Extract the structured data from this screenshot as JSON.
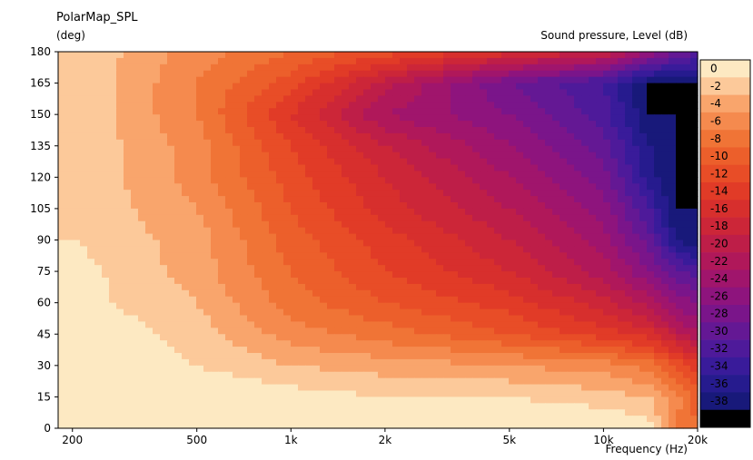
{
  "chart_data": {
    "type": "heatmap",
    "title": "PolarMap_SPL",
    "ylabel": "(deg)",
    "xlabel": "Frequency  (Hz)",
    "colorbar_label": "Sound pressure, Level  (dB)",
    "x_scale": "log",
    "xlim": [
      180,
      20000
    ],
    "ylim": [
      0,
      180
    ],
    "x_ticks": [
      {
        "value": 200,
        "label": "200"
      },
      {
        "value": 500,
        "label": "500"
      },
      {
        "value": 1000,
        "label": "1k"
      },
      {
        "value": 2000,
        "label": "2k"
      },
      {
        "value": 5000,
        "label": "5k"
      },
      {
        "value": 10000,
        "label": "10k"
      },
      {
        "value": 20000,
        "label": "20k"
      }
    ],
    "y_ticks": [
      0,
      15,
      30,
      45,
      60,
      75,
      90,
      105,
      120,
      135,
      150,
      165,
      180
    ],
    "colorbar": {
      "range": [
        -40,
        0
      ],
      "levels": [
        0,
        -2,
        -4,
        -6,
        -8,
        -10,
        -12,
        -14,
        -16,
        -18,
        -20,
        -22,
        -24,
        -26,
        -28,
        -30,
        -32,
        -34,
        -36,
        -38,
        -40
      ],
      "colors": [
        "#fde9c2",
        "#fcc99a",
        "#f9a56c",
        "#f58a4e",
        "#f07436",
        "#ec5f2b",
        "#e84d27",
        "#e13b27",
        "#d72f2d",
        "#cc2638",
        "#be1e48",
        "#b0185a",
        "#a0156c",
        "#8e147d",
        "#7a158a",
        "#641894",
        "#4e1a9a",
        "#391b9a",
        "#261b8e",
        "#18197a",
        "#000000"
      ]
    },
    "frequencies": [
      200,
      500,
      1000,
      2000,
      5000,
      10000,
      14000,
      17000,
      20000
    ],
    "angles": [
      0,
      15,
      30,
      45,
      60,
      75,
      90,
      105,
      120,
      135,
      150,
      165,
      180
    ],
    "values_db": [
      [
        0,
        0,
        0,
        0,
        0,
        0,
        -1,
        -8,
        -10
      ],
      [
        0,
        0,
        -1,
        -2,
        -2,
        -3,
        -4,
        -7,
        -11
      ],
      [
        0,
        -2,
        -4,
        -5,
        -6,
        -7,
        -9,
        -12,
        -15
      ],
      [
        0,
        -3,
        -7,
        -9,
        -12,
        -15,
        -17,
        -21,
        -24
      ],
      [
        -1,
        -4,
        -9,
        -12,
        -15,
        -19,
        -23,
        -27,
        -28
      ],
      [
        -1,
        -5,
        -10,
        -14,
        -18,
        -23,
        -28,
        -31,
        -33
      ],
      [
        -2,
        -5,
        -11,
        -15,
        -20,
        -25,
        -31,
        -38,
        -40
      ],
      [
        -2,
        -6,
        -12,
        -17,
        -22,
        -27,
        -34,
        -40,
        -40
      ],
      [
        -2,
        -7,
        -13,
        -18,
        -24,
        -29,
        -37,
        -40,
        -40
      ],
      [
        -2,
        -7,
        -14,
        -20,
        -26,
        -31,
        -38,
        -40,
        -40
      ],
      [
        -2,
        -8,
        -16,
        -24,
        -28,
        -33,
        -40,
        -40,
        -40
      ],
      [
        -2,
        -8,
        -13,
        -21,
        -30,
        -34,
        -40,
        -40,
        -40
      ],
      [
        -2,
        -7,
        -10,
        -13,
        -17,
        -20,
        -26,
        -30,
        -32
      ]
    ]
  }
}
